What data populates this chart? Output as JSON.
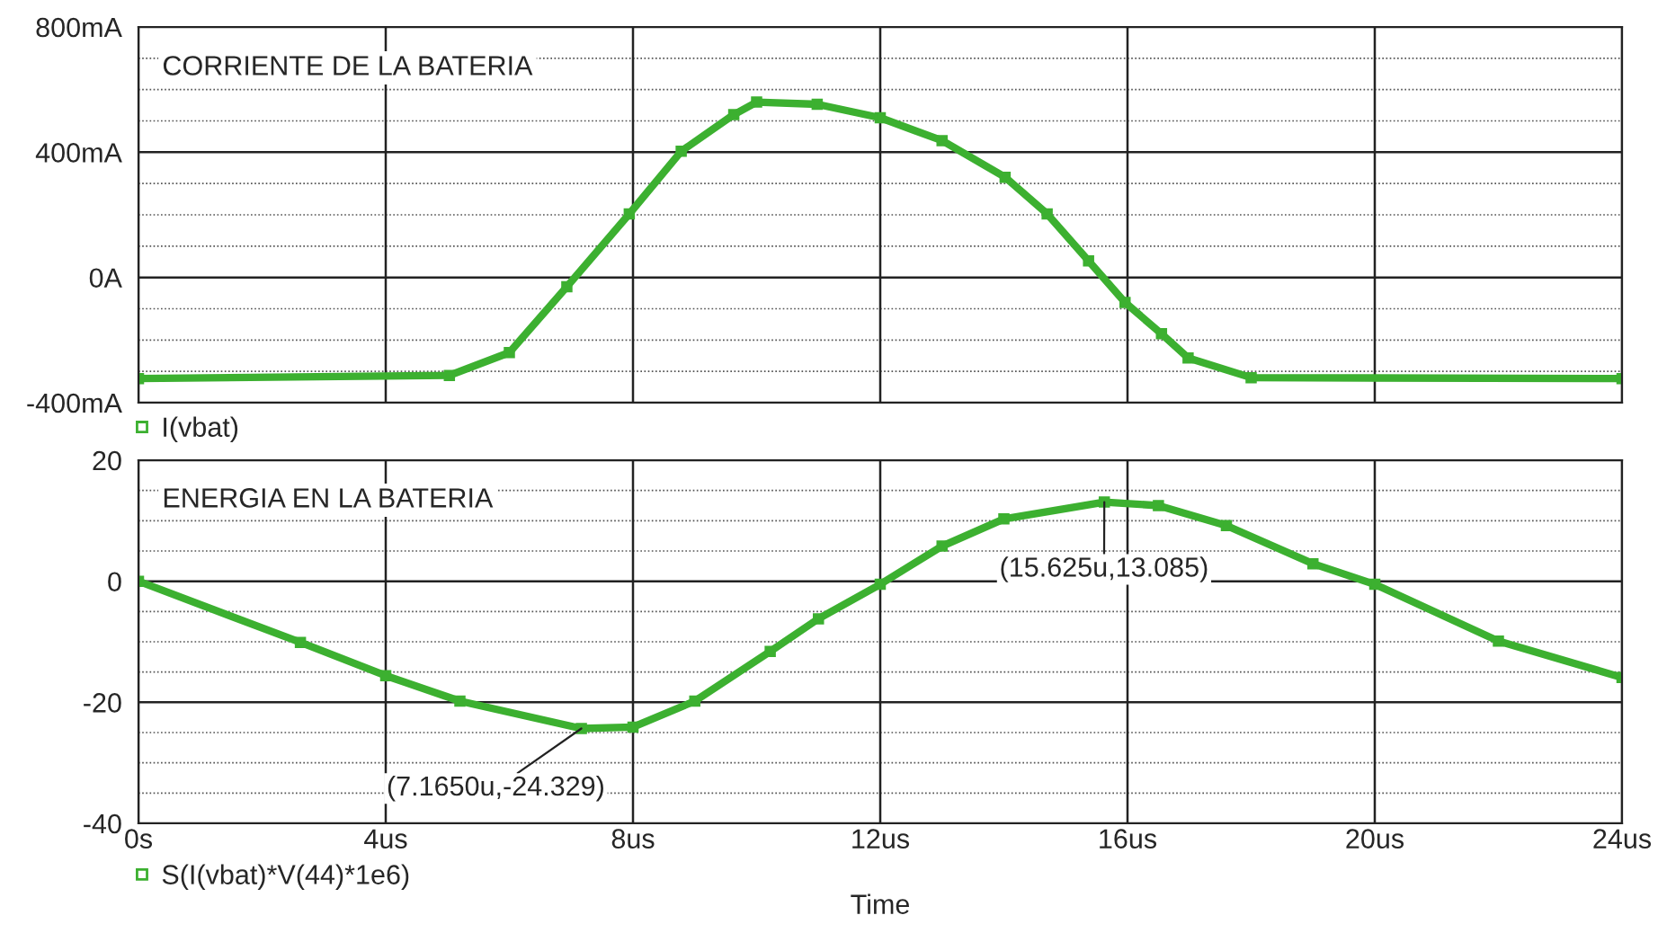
{
  "chart_data": [
    {
      "type": "line",
      "title": "CORRIENTE DE LA BATERIA",
      "xlim": [
        0,
        24
      ],
      "xticks": [
        {
          "value": 0,
          "label": null
        },
        {
          "value": 4,
          "label": null
        },
        {
          "value": 8,
          "label": null
        },
        {
          "value": 12,
          "label": null
        },
        {
          "value": 16,
          "label": null
        },
        {
          "value": 20,
          "label": null
        },
        {
          "value": 24,
          "label": null
        }
      ],
      "ylim": [
        -400,
        800
      ],
      "yticks": [
        {
          "value": -400,
          "label": "-400mA"
        },
        {
          "value": 0,
          "label": "0A"
        },
        {
          "value": 400,
          "label": "400mA"
        },
        {
          "value": 800,
          "label": "800mA"
        }
      ],
      "tick_labels": "y",
      "grid": true,
      "legend": "bottom left",
      "marker": "square",
      "line_style": "solid",
      "series": [
        {
          "name": "I(vbat)",
          "color": "#3cb030",
          "x": [
            0,
            5.03,
            6.0,
            6.93,
            7.94,
            8.78,
            9.63,
            10.0,
            10.98,
            12.0,
            13.0,
            14.02,
            14.7,
            15.37,
            15.96,
            16.55,
            16.98,
            18.0,
            24
          ],
          "values": [
            -323,
            -313,
            -240,
            -30,
            203,
            403,
            520,
            560,
            553,
            510,
            437,
            320,
            203,
            53,
            -80,
            -180,
            -257,
            -320,
            -323
          ]
        }
      ]
    },
    {
      "type": "line",
      "title": "ENERGIA EN LA BATERIA",
      "xlabel": "Time",
      "xlim": [
        0,
        24
      ],
      "xticks": [
        {
          "value": 0,
          "label": "0s"
        },
        {
          "value": 4,
          "label": "4us"
        },
        {
          "value": 8,
          "label": "8us"
        },
        {
          "value": 12,
          "label": "12us"
        },
        {
          "value": 16,
          "label": "16us"
        },
        {
          "value": 20,
          "label": "20us"
        },
        {
          "value": 24,
          "label": "24us"
        }
      ],
      "ylim": [
        -40,
        20
      ],
      "yticks": [
        -40,
        -20,
        0,
        20
      ],
      "grid": true,
      "legend": "bottom left",
      "marker": "square",
      "line_style": "solid",
      "series": [
        {
          "name": "S(I(vbat)*V(44)*1e6)",
          "color": "#3cb030",
          "x": [
            0,
            2.62,
            4,
            5.2,
            7.165,
            8,
            9,
            10.22,
            11,
            12,
            13,
            14,
            15.625,
            16.5,
            17.6,
            19,
            20,
            22,
            24
          ],
          "values": [
            0,
            -10.1,
            -15.6,
            -19.8,
            -24.329,
            -24.1,
            -19.8,
            -11.6,
            -6.2,
            -0.5,
            5.8,
            10.3,
            13.085,
            12.5,
            9.2,
            2.9,
            -0.5,
            -9.9,
            -15.9
          ]
        }
      ],
      "annotations": [
        {
          "text": "(7.1650u,-24.329)",
          "x": 7.165,
          "y": -24.329
        },
        {
          "text": "(15.625u,13.085)",
          "x": 15.625,
          "y": 13.085
        }
      ]
    }
  ]
}
